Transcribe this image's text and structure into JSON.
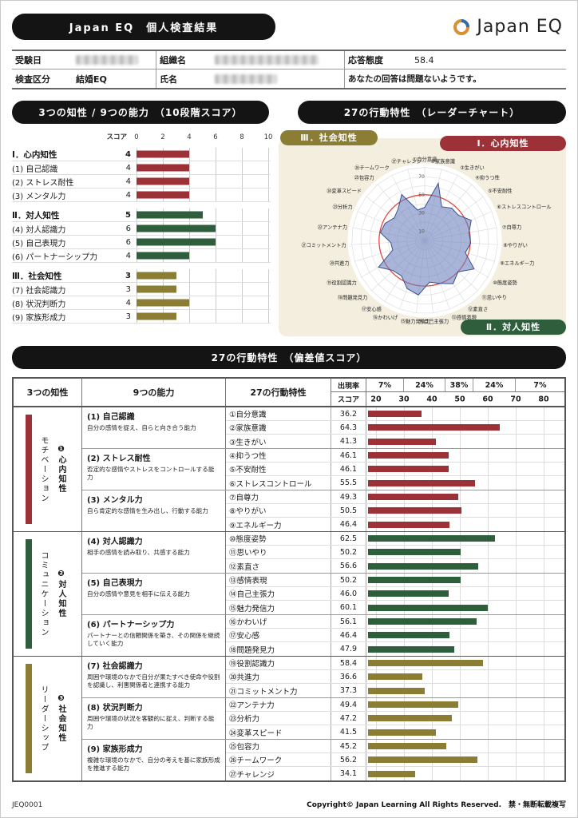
{
  "header": {
    "title": "Japan EQ　個人検査結果",
    "logo_text": "Japan EQ"
  },
  "info": {
    "exam_date_label": "受験日",
    "org_label": "組織名",
    "attitude_label": "応答態度",
    "attitude_value": "58.4",
    "category_label": "検査区分",
    "category_value": "結婚EQ",
    "name_label": "氏名",
    "note": "あなたの回答は問題ないようです。"
  },
  "score10": {
    "title": "3つの知性 / 9つの能力　（10段階スコア）",
    "axis_label": "スコア",
    "ticks": [
      0,
      2,
      4,
      6,
      8,
      10
    ],
    "groups": [
      {
        "label": "Ⅰ．心内知性",
        "score": 4,
        "color": "#9c3137",
        "items": [
          {
            "label": "(1) 自己認識",
            "score": 4
          },
          {
            "label": "(2) ストレス耐性",
            "score": 4
          },
          {
            "label": "(3) メンタル力",
            "score": 4
          }
        ]
      },
      {
        "label": "Ⅱ．対人知性",
        "score": 5,
        "color": "#2f5e3c",
        "items": [
          {
            "label": "(4) 対人認識力",
            "score": 6
          },
          {
            "label": "(5) 自己表現力",
            "score": 6
          },
          {
            "label": "(6) パートナーシップ力",
            "score": 4
          }
        ]
      },
      {
        "label": "Ⅲ．社会知性",
        "score": 3,
        "color": "#8b7d33",
        "items": [
          {
            "label": "(7) 社会認識力",
            "score": 3
          },
          {
            "label": "(8) 状況判断力",
            "score": 4
          },
          {
            "label": "(9) 家族形成力",
            "score": 3
          }
        ]
      }
    ]
  },
  "radar": {
    "title": "27の行動特性　（レーダーチャート）",
    "badges": [
      {
        "label": "Ⅲ．社会知性",
        "color": "#8b7d33"
      },
      {
        "label": "Ⅰ．心内知性",
        "color": "#9c3137"
      },
      {
        "label": "Ⅱ．対人知性",
        "color": "#2f5e3c"
      }
    ],
    "rings": [
      10,
      30,
      50,
      70
    ],
    "max": 80,
    "average_ring": 50,
    "avg_ring_color": "#e0483c",
    "poly_fill": "rgba(112,130,192,0.6)",
    "poly_stroke": "#37508f",
    "labels": [
      "①自分意識",
      "②家族意識",
      "③生きがい",
      "④抑うつ性",
      "⑤不安耐性",
      "⑥ストレスコントロール",
      "⑦自尊力",
      "⑧やりがい",
      "⑨エネルギー力",
      "⑩態度姿勢",
      "⑪思いやり",
      "⑫素直さ",
      "⑬感情表現",
      "⑭自己主張力",
      "⑮魅力発信力",
      "⑯かわいげ",
      "⑰安心感",
      "⑱問題発見力",
      "⑲役割認識力",
      "⑳共進力",
      "㉑コミットメント力",
      "㉒アンテナ力",
      "㉓分析力",
      "㉔変革スピード",
      "㉕包容力",
      "㉖チームワーク",
      "㉗チャレンジ"
    ],
    "values": [
      36.2,
      64.3,
      41.3,
      46.1,
      46.1,
      55.5,
      49.3,
      50.5,
      46.4,
      62.5,
      50.2,
      56.6,
      50.2,
      46.0,
      60.1,
      56.1,
      46.4,
      47.9,
      58.4,
      36.6,
      37.3,
      49.4,
      47.2,
      41.5,
      45.2,
      56.2,
      34.1
    ]
  },
  "table": {
    "title": "27の行動特性　（偏差値スコア）",
    "header": {
      "col1": "3つの知性",
      "col2": "9つの能力",
      "col3": "27の行動特性",
      "rate_label": "出現率",
      "rates": [
        "7%",
        "24%",
        "38%",
        "24%",
        "7%"
      ],
      "score_label": "スコア",
      "ticks": [
        20,
        30,
        40,
        50,
        60,
        70,
        80
      ]
    },
    "sections": [
      {
        "side_label": "モチベーション",
        "group_label": "❶心内知性",
        "color": "#9c3137",
        "abilities": [
          {
            "name": "(1) 自己認識",
            "desc": "自分の感情を捉え、自らと向き合う能力",
            "traits": [
              {
                "label": "①自分意識",
                "score": 36.2
              },
              {
                "label": "②家族意識",
                "score": 64.3
              },
              {
                "label": "③生きがい",
                "score": 41.3
              }
            ]
          },
          {
            "name": "(2) ストレス耐性",
            "desc": "否定的な感情やストレスをコントロールする能力",
            "traits": [
              {
                "label": "④抑うつ性",
                "score": 46.1
              },
              {
                "label": "⑤不安耐性",
                "score": 46.1
              },
              {
                "label": "⑥ストレスコントロール",
                "score": 55.5
              }
            ]
          },
          {
            "name": "(3) メンタル力",
            "desc": "自ら肯定的な感情を生み出し、行動する能力",
            "traits": [
              {
                "label": "⑦自尊力",
                "score": 49.3
              },
              {
                "label": "⑧やりがい",
                "score": 50.5
              },
              {
                "label": "⑨エネルギー力",
                "score": 46.4
              }
            ]
          }
        ]
      },
      {
        "side_label": "コミュニケーション",
        "group_label": "❷対人知性",
        "color": "#2f5e3c",
        "abilities": [
          {
            "name": "(4) 対人認識力",
            "desc": "相手の感情を読み取り、共感する能力",
            "traits": [
              {
                "label": "⑩態度姿勢",
                "score": 62.5
              },
              {
                "label": "⑪思いやり",
                "score": 50.2
              },
              {
                "label": "⑫素直さ",
                "score": 56.6
              }
            ]
          },
          {
            "name": "(5) 自己表現力",
            "desc": "自分の感情や意見を相手に伝える能力",
            "traits": [
              {
                "label": "⑬感情表現",
                "score": 50.2
              },
              {
                "label": "⑭自己主張力",
                "score": 46.0
              },
              {
                "label": "⑮魅力発信力",
                "score": 60.1
              }
            ]
          },
          {
            "name": "(6) パートナーシップ力",
            "desc": "パートナーとの信頼関係を築き、その関係を継続していく能力",
            "traits": [
              {
                "label": "⑯かわいげ",
                "score": 56.1
              },
              {
                "label": "⑰安心感",
                "score": 46.4
              },
              {
                "label": "⑱問題発見力",
                "score": 47.9
              }
            ]
          }
        ]
      },
      {
        "side_label": "リーダーシップ",
        "group_label": "❸社会知性",
        "color": "#8b7d33",
        "abilities": [
          {
            "name": "(7) 社会認識力",
            "desc": "周囲や環境のなかで自分が果たすべき使命や役割を認識し、利害関係者と連携する能力",
            "traits": [
              {
                "label": "⑲役割認識力",
                "score": 58.4
              },
              {
                "label": "⑳共進力",
                "score": 36.6
              },
              {
                "label": "㉑コミットメント力",
                "score": 37.3
              }
            ]
          },
          {
            "name": "(8) 状況判断力",
            "desc": "周囲や環境の状況を客観的に捉え、判断する能力",
            "traits": [
              {
                "label": "㉒アンテナ力",
                "score": 49.4
              },
              {
                "label": "㉓分析力",
                "score": 47.2
              },
              {
                "label": "㉔変革スピード",
                "score": 41.5
              }
            ]
          },
          {
            "name": "(9) 家族形成力",
            "desc": "複雑な環境のなかで、自分の考えを基に家族形成を推進する能力",
            "traits": [
              {
                "label": "㉕包容力",
                "score": 45.2
              },
              {
                "label": "㉖チームワーク",
                "score": 56.2
              },
              {
                "label": "㉗チャレンジ",
                "score": 34.1
              }
            ]
          }
        ]
      }
    ]
  },
  "footer": {
    "code": "JEQ0001",
    "copyright": "Copyright© Japan Learning All Rights Reserved.　禁・無断転載複写"
  }
}
